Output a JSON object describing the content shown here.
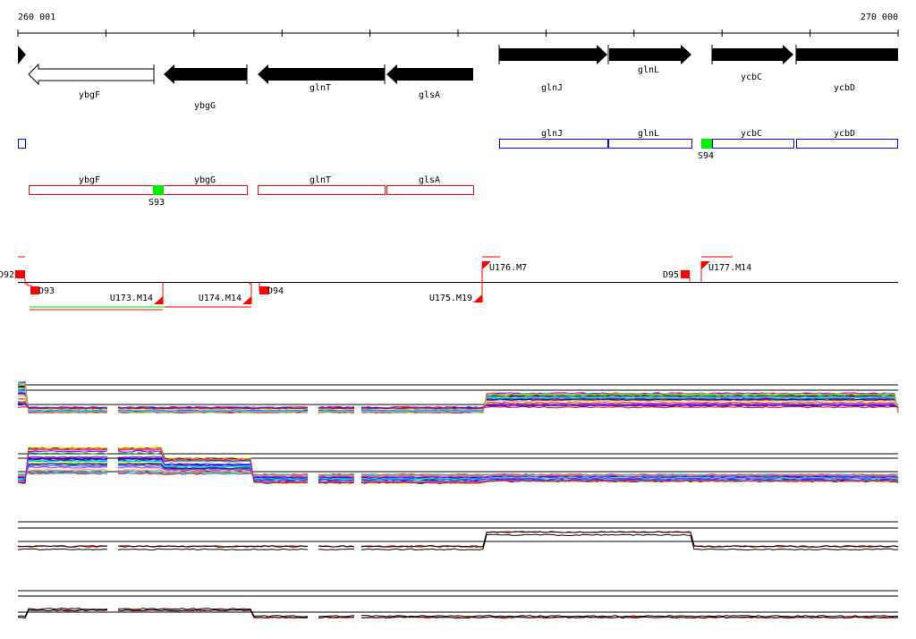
{
  "ruler": {
    "start_label": "260 001",
    "end_label": "270 000"
  },
  "genes": [
    {
      "name": "ybgF",
      "strand": "-",
      "style": "outline"
    },
    {
      "name": "ybgG",
      "strand": "-",
      "style": "filled"
    },
    {
      "name": "glnT",
      "strand": "-",
      "style": "filled"
    },
    {
      "name": "glsA",
      "strand": "-",
      "style": "filled"
    },
    {
      "name": "glnJ",
      "strand": "+",
      "style": "filled"
    },
    {
      "name": "glnL",
      "strand": "+",
      "style": "filled"
    },
    {
      "name": "ycbC",
      "strand": "+",
      "style": "filled"
    },
    {
      "name": "ycbD",
      "strand": "+",
      "style": "filled"
    }
  ],
  "operons_forward": {
    "labels": [
      "glnJ",
      "glnL",
      "ycbC",
      "ycbD"
    ],
    "site": "S94"
  },
  "operons_reverse": {
    "labels": [
      "ybgF",
      "ybgG",
      "glnT",
      "glsA"
    ],
    "site": "S93"
  },
  "features": [
    "D92",
    "D93",
    "U173.M14",
    "U174.M14",
    "D94",
    "U175.M19",
    "U176.M7",
    "D95",
    "U177.M14"
  ],
  "colors": {
    "forward": "#0000ff",
    "reverse": "#ff0000",
    "site": "#00ee00",
    "gene": "#000000"
  }
}
